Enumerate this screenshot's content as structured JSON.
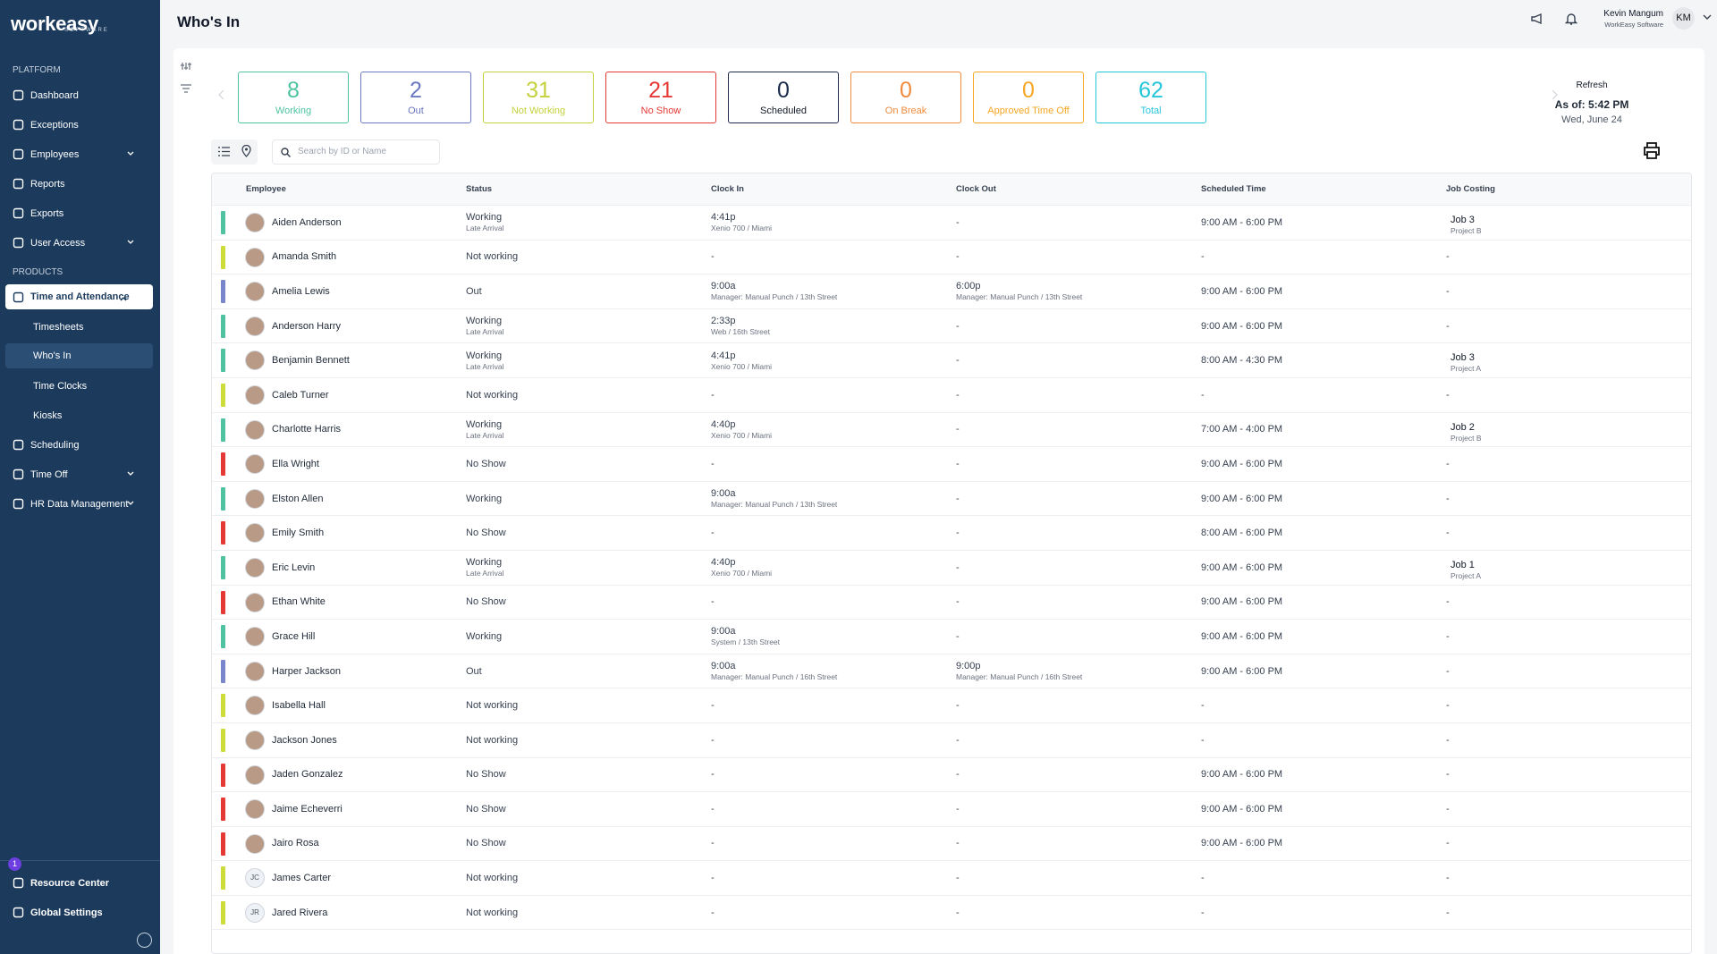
{
  "header": {
    "title": "Who's In",
    "user_name": "Kevin Mangum",
    "user_org": "WorkEasy Software",
    "user_initials": "KM"
  },
  "sidebar": {
    "logo": "workeasy",
    "logo_sub": "SOFTWARE",
    "badge": "1",
    "sections": [
      {
        "label": "PLATFORM",
        "items": [
          {
            "label": "Dashboard"
          },
          {
            "label": "Exceptions"
          },
          {
            "label": "Employees",
            "expandable": true
          },
          {
            "label": "Reports"
          },
          {
            "label": "Exports"
          },
          {
            "label": "User Access",
            "expandable": true
          }
        ]
      },
      {
        "label": "PRODUCTS",
        "items": [
          {
            "label": "Time and Attendance",
            "expandable": true,
            "expanded": true,
            "children": [
              {
                "label": "Timesheets"
              },
              {
                "label": "Who's In",
                "selected": true
              },
              {
                "label": "Time Clocks"
              },
              {
                "label": "Kiosks"
              }
            ]
          },
          {
            "label": "Scheduling"
          },
          {
            "label": "Time Off",
            "expandable": true
          },
          {
            "label": "HR Data Management",
            "expandable": true
          }
        ]
      }
    ],
    "footer": [
      {
        "label": "Resource Center"
      },
      {
        "label": "Global Settings"
      }
    ]
  },
  "summary": {
    "cards": [
      {
        "value": 8,
        "label": "Working",
        "color": "#4fc3a1"
      },
      {
        "value": 2,
        "label": "Out",
        "color": "#6b78c2"
      },
      {
        "value": 31,
        "label": "Not Working",
        "color": "#c3d13c"
      },
      {
        "value": 21,
        "label": "No Show",
        "color": "#e53935"
      },
      {
        "value": 0,
        "label": "Scheduled",
        "color": "#1b2a4a",
        "strong": true
      },
      {
        "value": 0,
        "label": "On Break",
        "color": "#f08a3c"
      },
      {
        "value": 0,
        "label": "Approved Time Off",
        "color": "#f5a623"
      },
      {
        "value": 62,
        "label": "Total",
        "color": "#26c6da"
      }
    ],
    "refresh": "Refresh",
    "as_of": "As of: 5:42 PM",
    "date": "Wed, June 24"
  },
  "search_placeholder": "Search by ID or Name",
  "table": {
    "columns": [
      "Employee",
      "Status",
      "Clock In",
      "Clock Out",
      "Scheduled Time",
      "Job Costing"
    ],
    "rows": [
      {
        "name": "Aiden Anderson",
        "color": "#4fc3a1",
        "status": "Working",
        "status_sub": "Late Arrival",
        "clock_in": "4:41p",
        "clock_in_sub": "Xenio 700 / Miami",
        "clock_out": "-",
        "scheduled": "9:00 AM - 6:00 PM",
        "job": "Job 3",
        "job_sub": "Project B"
      },
      {
        "name": "Amanda Smith",
        "color": "#cddc39",
        "status": "Not working",
        "clock_in": "-",
        "clock_out": "-",
        "scheduled": "-",
        "job": "-"
      },
      {
        "name": "Amelia Lewis",
        "color": "#7986cb",
        "status": "Out",
        "clock_in": "9:00a",
        "clock_in_sub": "Manager: Manual Punch / 13th Street",
        "clock_out": "6:00p",
        "clock_out_sub": "Manager: Manual Punch / 13th Street",
        "scheduled": "9:00 AM - 6:00 PM",
        "job": "-"
      },
      {
        "name": "Anderson Harry",
        "color": "#4fc3a1",
        "status": "Working",
        "status_sub": "Late Arrival",
        "clock_in": "2:33p",
        "clock_in_sub": "Web / 16th Street",
        "clock_out": "-",
        "scheduled": "9:00 AM - 6:00 PM",
        "job": "-"
      },
      {
        "name": "Benjamin Bennett",
        "color": "#4fc3a1",
        "status": "Working",
        "status_sub": "Late Arrival",
        "clock_in": "4:41p",
        "clock_in_sub": "Xenio 700 / Miami",
        "clock_out": "-",
        "scheduled": "8:00 AM - 4:30 PM",
        "job": "Job 3",
        "job_sub": "Project A"
      },
      {
        "name": "Caleb Turner",
        "color": "#cddc39",
        "status": "Not working",
        "clock_in": "-",
        "clock_out": "-",
        "scheduled": "-",
        "job": "-"
      },
      {
        "name": "Charlotte Harris",
        "color": "#4fc3a1",
        "status": "Working",
        "status_sub": "Late Arrival",
        "clock_in": "4:40p",
        "clock_in_sub": "Xenio 700 / Miami",
        "clock_out": "-",
        "scheduled": "7:00 AM - 4:00 PM",
        "job": "Job 2",
        "job_sub": "Project B"
      },
      {
        "name": "Ella Wright",
        "color": "#e53935",
        "status": "No Show",
        "clock_in": "-",
        "clock_out": "-",
        "scheduled": "9:00 AM - 6:00 PM",
        "job": "-"
      },
      {
        "name": "Elston Allen",
        "color": "#4fc3a1",
        "status": "Working",
        "clock_in": "9:00a",
        "clock_in_sub": "Manager: Manual Punch / 13th Street",
        "clock_out": "-",
        "scheduled": "9:00 AM - 6:00 PM",
        "job": "-"
      },
      {
        "name": "Emily Smith",
        "color": "#e53935",
        "status": "No Show",
        "clock_in": "-",
        "clock_out": "-",
        "scheduled": "8:00 AM - 6:00 PM",
        "job": "-"
      },
      {
        "name": "Eric Levin",
        "color": "#4fc3a1",
        "status": "Working",
        "status_sub": "Late Arrival",
        "clock_in": "4:40p",
        "clock_in_sub": "Xenio 700 / Miami",
        "clock_out": "-",
        "scheduled": "9:00 AM - 6:00 PM",
        "job": "Job 1",
        "job_sub": "Project A"
      },
      {
        "name": "Ethan White",
        "color": "#e53935",
        "status": "No Show",
        "clock_in": "-",
        "clock_out": "-",
        "scheduled": "9:00 AM - 6:00 PM",
        "job": "-"
      },
      {
        "name": "Grace Hill",
        "color": "#4fc3a1",
        "status": "Working",
        "clock_in": "9:00a",
        "clock_in_sub": "System / 13th Street",
        "clock_out": "-",
        "scheduled": "9:00 AM - 6:00 PM",
        "job": "-"
      },
      {
        "name": "Harper Jackson",
        "color": "#7986cb",
        "status": "Out",
        "clock_in": "9:00a",
        "clock_in_sub": "Manager: Manual Punch / 16th Street",
        "clock_out": "9:00p",
        "clock_out_sub": "Manager: Manual Punch / 16th Street",
        "scheduled": "9:00 AM - 6:00 PM",
        "job": "-"
      },
      {
        "name": "Isabella Hall",
        "color": "#cddc39",
        "status": "Not working",
        "clock_in": "-",
        "clock_out": "-",
        "scheduled": "-",
        "job": "-"
      },
      {
        "name": "Jackson Jones",
        "color": "#cddc39",
        "status": "Not working",
        "clock_in": "-",
        "clock_out": "-",
        "scheduled": "-",
        "job": "-"
      },
      {
        "name": "Jaden Gonzalez",
        "color": "#e53935",
        "status": "No Show",
        "clock_in": "-",
        "clock_out": "-",
        "scheduled": "9:00 AM - 6:00 PM",
        "job": "-"
      },
      {
        "name": "Jaime Echeverri",
        "color": "#e53935",
        "status": "No Show",
        "clock_in": "-",
        "clock_out": "-",
        "scheduled": "9:00 AM - 6:00 PM",
        "job": "-"
      },
      {
        "name": "Jairo Rosa",
        "color": "#e53935",
        "status": "No Show",
        "clock_in": "-",
        "clock_out": "-",
        "scheduled": "9:00 AM - 6:00 PM",
        "job": "-"
      },
      {
        "name": "James Carter",
        "initials": "JC",
        "color": "#cddc39",
        "status": "Not working",
        "clock_in": "-",
        "clock_out": "-",
        "scheduled": "-",
        "job": "-"
      },
      {
        "name": "Jared Rivera",
        "initials": "JR",
        "color": "#cddc39",
        "status": "Not working",
        "clock_in": "-",
        "clock_out": "-",
        "scheduled": "-",
        "job": "-"
      }
    ]
  }
}
